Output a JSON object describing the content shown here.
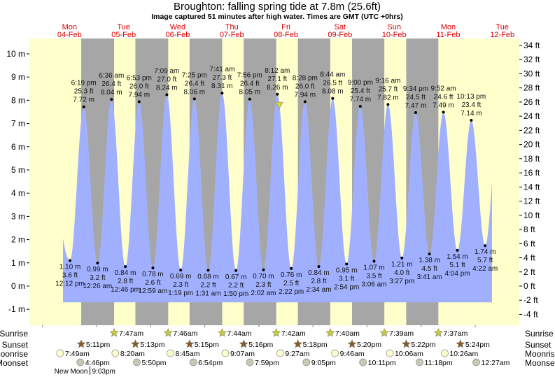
{
  "title": "Broughton: falling  spring tide at 7.8m (25.6ft)",
  "subtitle": "Image captured 51 minutes after high water. Times are GMT (UTC +0hrs)",
  "colors": {
    "day": "#ffffcc",
    "night": "#a6a6a6",
    "water": "#a0b0ff",
    "date": "#dd0000",
    "sunrise": "#cccc33",
    "sunset": "#8b5a2b",
    "moonrise": "#ffffcc",
    "moonset": "#c8c8b4",
    "marker": "#dddd22"
  },
  "chart_data": {
    "type": "area",
    "title": "Broughton: falling  spring tide at 7.8m (25.6ft)",
    "ylabel_left_unit": "m",
    "ylabel_right_unit": "ft",
    "ylim_m": [
      -1.7,
      10.6
    ],
    "left_ticks": [
      "10 m",
      "9 m",
      "8 m",
      "7 m",
      "6 m",
      "5 m",
      "4 m",
      "3 m",
      "2 m",
      "1 m",
      "0 m",
      "-1 m"
    ],
    "right_ticks": [
      "34 ft",
      "32 ft",
      "30 ft",
      "28 ft",
      "26 ft",
      "24 ft",
      "22 ft",
      "20 ft",
      "18 ft",
      "16 ft",
      "14 ft",
      "12 ft",
      "10 ft",
      "8 ft",
      "6 ft",
      "4 ft",
      "2 ft",
      "0 ft",
      "-2 ft",
      "-4 ft"
    ],
    "days": [
      {
        "weekday": "Mon",
        "date": "04-Feb"
      },
      {
        "weekday": "Tue",
        "date": "05-Feb"
      },
      {
        "weekday": "Wed",
        "date": "06-Feb"
      },
      {
        "weekday": "Thu",
        "date": "07-Feb"
      },
      {
        "weekday": "Fri",
        "date": "08-Feb"
      },
      {
        "weekday": "Sat",
        "date": "09-Feb"
      },
      {
        "weekday": "Sun",
        "date": "10-Feb"
      },
      {
        "weekday": "Mon",
        "date": "11-Feb"
      },
      {
        "weekday": "Tue",
        "date": "12-Feb"
      }
    ],
    "current": {
      "day": 4,
      "time": "9:03 am",
      "m": 7.8
    },
    "extremes": [
      {
        "type": "low",
        "day": 0,
        "time": "12:12 pm",
        "ft": "3.6 ft",
        "m": "1.10 m",
        "v": 1.1
      },
      {
        "type": "high",
        "day": 0,
        "time": "6:19 pm",
        "ft": "25.3 ft",
        "m": "7.72 m",
        "v": 7.72
      },
      {
        "type": "low",
        "day": 1,
        "time": "12:26 am",
        "ft": "3.2 ft",
        "m": "0.99 m",
        "v": 0.99
      },
      {
        "type": "high",
        "day": 1,
        "time": "6:36 am",
        "ft": "26.4 ft",
        "m": "8.04 m",
        "v": 8.04
      },
      {
        "type": "low",
        "day": 1,
        "time": "12:46 pm",
        "ft": "2.8 ft",
        "m": "0.84 m",
        "v": 0.84
      },
      {
        "type": "high",
        "day": 1,
        "time": "6:53 pm",
        "ft": "26.0 ft",
        "m": "7.94 m",
        "v": 7.94
      },
      {
        "type": "low",
        "day": 2,
        "time": "12:59 am",
        "ft": "2.6 ft",
        "m": "0.78 m",
        "v": 0.78
      },
      {
        "type": "high",
        "day": 2,
        "time": "7:09 am",
        "ft": "27.0 ft",
        "m": "8.24 m",
        "v": 8.24
      },
      {
        "type": "low",
        "day": 2,
        "time": "1:19 pm",
        "ft": "2.3 ft",
        "m": "0.69 m",
        "v": 0.69
      },
      {
        "type": "high",
        "day": 2,
        "time": "7:25 pm",
        "ft": "26.4 ft",
        "m": "8.06 m",
        "v": 8.06
      },
      {
        "type": "low",
        "day": 3,
        "time": "1:31 am",
        "ft": "2.2 ft",
        "m": "0.68 m",
        "v": 0.68
      },
      {
        "type": "high",
        "day": 3,
        "time": "7:41 am",
        "ft": "27.3 ft",
        "m": "8.31 m",
        "v": 8.31
      },
      {
        "type": "low",
        "day": 3,
        "time": "1:50 pm",
        "ft": "2.2 ft",
        "m": "0.67 m",
        "v": 0.67
      },
      {
        "type": "high",
        "day": 3,
        "time": "7:56 pm",
        "ft": "26.4 ft",
        "m": "8.05 m",
        "v": 8.05
      },
      {
        "type": "low",
        "day": 4,
        "time": "2:02 am",
        "ft": "2.3 ft",
        "m": "0.70 m",
        "v": 0.7
      },
      {
        "type": "high",
        "day": 4,
        "time": "8:12 am",
        "ft": "27.1 ft",
        "m": "8.26 m",
        "v": 8.26
      },
      {
        "type": "low",
        "day": 4,
        "time": "2:22 pm",
        "ft": "2.5 ft",
        "m": "0.76 m",
        "v": 0.76
      },
      {
        "type": "high",
        "day": 4,
        "time": "8:28 pm",
        "ft": "26.0 ft",
        "m": "7.94 m",
        "v": 7.94
      },
      {
        "type": "low",
        "day": 5,
        "time": "2:34 am",
        "ft": "2.8 ft",
        "m": "0.84 m",
        "v": 0.84
      },
      {
        "type": "high",
        "day": 5,
        "time": "8:44 am",
        "ft": "26.5 ft",
        "m": "8.08 m",
        "v": 8.08
      },
      {
        "type": "low",
        "day": 5,
        "time": "2:54 pm",
        "ft": "3.1 ft",
        "m": "0.95 m",
        "v": 0.95
      },
      {
        "type": "high",
        "day": 5,
        "time": "9:00 pm",
        "ft": "25.4 ft",
        "m": "7.74 m",
        "v": 7.74
      },
      {
        "type": "low",
        "day": 6,
        "time": "3:06 am",
        "ft": "3.5 ft",
        "m": "1.07 m",
        "v": 1.07
      },
      {
        "type": "high",
        "day": 6,
        "time": "9:16 am",
        "ft": "25.7 ft",
        "m": "7.82 m",
        "v": 7.82
      },
      {
        "type": "low",
        "day": 6,
        "time": "3:27 pm",
        "ft": "4.0 ft",
        "m": "1.21 m",
        "v": 1.21
      },
      {
        "type": "high",
        "day": 6,
        "time": "9:34 pm",
        "ft": "24.5 ft",
        "m": "7.47 m",
        "v": 7.47
      },
      {
        "type": "low",
        "day": 7,
        "time": "3:41 am",
        "ft": "4.5 ft",
        "m": "1.38 m",
        "v": 1.38
      },
      {
        "type": "high",
        "day": 7,
        "time": "9:52 am",
        "ft": "24.6 ft",
        "m": "7.49 m",
        "v": 7.49
      },
      {
        "type": "low",
        "day": 7,
        "time": "4:04 pm",
        "ft": "5.1 ft",
        "m": "1.54 m",
        "v": 1.54
      },
      {
        "type": "high",
        "day": 7,
        "time": "10:13 pm",
        "ft": "23.4 ft",
        "m": "7.14 m",
        "v": 7.14
      },
      {
        "type": "low",
        "day": 8,
        "time": "4:22 am",
        "ft": "5.7 ft",
        "m": "1.74 m",
        "v": 1.74
      }
    ]
  },
  "rows": {
    "labels": {
      "sunrise": "Sunrise",
      "sunset": "Sunset",
      "moonrise": "Moonrise",
      "moonset": "Moonset"
    },
    "sunrise": [
      {
        "day": 1,
        "time": "7:47am"
      },
      {
        "day": 2,
        "time": "7:46am"
      },
      {
        "day": 3,
        "time": "7:44am"
      },
      {
        "day": 4,
        "time": "7:42am"
      },
      {
        "day": 5,
        "time": "7:40am"
      },
      {
        "day": 6,
        "time": "7:39am"
      },
      {
        "day": 7,
        "time": "7:37am"
      }
    ],
    "sunset": [
      {
        "day": 0,
        "time": "5:11pm"
      },
      {
        "day": 1,
        "time": "5:13pm"
      },
      {
        "day": 2,
        "time": "5:15pm"
      },
      {
        "day": 3,
        "time": "5:16pm"
      },
      {
        "day": 4,
        "time": "5:18pm"
      },
      {
        "day": 5,
        "time": "5:20pm"
      },
      {
        "day": 6,
        "time": "5:22pm"
      },
      {
        "day": 7,
        "time": "5:24pm"
      }
    ],
    "moonrise": [
      {
        "day": 0,
        "time": "7:49am"
      },
      {
        "day": 1,
        "time": "8:20am"
      },
      {
        "day": 2,
        "time": "8:45am"
      },
      {
        "day": 3,
        "time": "9:07am"
      },
      {
        "day": 4,
        "time": "9:27am"
      },
      {
        "day": 5,
        "time": "9:46am"
      },
      {
        "day": 6,
        "time": "10:06am"
      },
      {
        "day": 7,
        "time": "10:26am"
      }
    ],
    "moonset": [
      {
        "day": 0,
        "time": "4:46pm"
      },
      {
        "day": 1,
        "time": "5:50pm"
      },
      {
        "day": 2,
        "time": "6:54pm"
      },
      {
        "day": 3,
        "time": "7:59pm"
      },
      {
        "day": 4,
        "time": "9:05pm"
      },
      {
        "day": 5,
        "time": "10:11pm"
      },
      {
        "day": 6,
        "time": "11:18pm"
      },
      {
        "day": 8,
        "time": "12:27am"
      }
    ],
    "moon_phase": {
      "day": 0,
      "label": "New Moon",
      "time": "9:03pm"
    }
  }
}
